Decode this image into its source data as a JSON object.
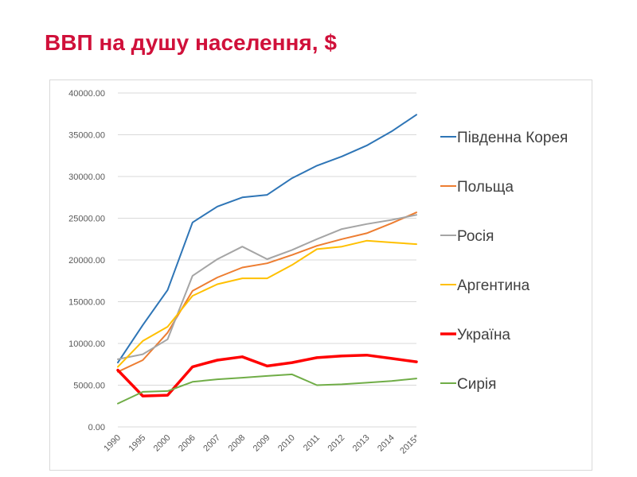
{
  "slide": {
    "title": "ВВП на душу населення, $"
  },
  "chart_data": {
    "type": "line",
    "title": "",
    "xlabel": "",
    "ylabel": "",
    "ylim": [
      0,
      40000
    ],
    "yticks": [
      "0.00",
      "5000.00",
      "10000.00",
      "15000.00",
      "20000.00",
      "25000.00",
      "30000.00",
      "35000.00",
      "40000.00"
    ],
    "categories": [
      "1990",
      "1995",
      "2000",
      "2006",
      "2007",
      "2008",
      "2009",
      "2010",
      "2011",
      "2012",
      "2013",
      "2014",
      "2015*"
    ],
    "grid": "horizontal",
    "legend_position": "right",
    "series": [
      {
        "name": "Південна Корея",
        "color": "#2e75b6",
        "width": 2,
        "values": [
          7700,
          12200,
          16400,
          24500,
          26400,
          27500,
          27800,
          29800,
          31300,
          32400,
          33700,
          35400,
          37400
        ]
      },
      {
        "name": "Польща",
        "color": "#ed7d31",
        "width": 2,
        "values": [
          6600,
          8000,
          11300,
          16300,
          17900,
          19100,
          19600,
          20600,
          21700,
          22500,
          23200,
          24400,
          25700
        ]
      },
      {
        "name": "Росія",
        "color": "#a5a5a5",
        "width": 2,
        "values": [
          8100,
          8700,
          10500,
          18100,
          20100,
          21600,
          20100,
          21200,
          22500,
          23700,
          24300,
          24800,
          25400
        ]
      },
      {
        "name": "Аргентина",
        "color": "#ffc000",
        "width": 2,
        "values": [
          7200,
          10300,
          12000,
          15700,
          17100,
          17800,
          17800,
          19400,
          21300,
          21600,
          22300,
          22100,
          21900
        ]
      },
      {
        "name": "Україна",
        "color": "#ff0000",
        "width": 3.5,
        "values": [
          6800,
          3700,
          3800,
          7200,
          8000,
          8400,
          7300,
          7700,
          8300,
          8500,
          8600,
          8200,
          7800
        ]
      },
      {
        "name": "Сирія",
        "color": "#70ad47",
        "width": 2,
        "values": [
          2800,
          4200,
          4300,
          5400,
          5700,
          5900,
          6100,
          6300,
          5000,
          5100,
          5300,
          5500,
          5800
        ]
      }
    ]
  }
}
